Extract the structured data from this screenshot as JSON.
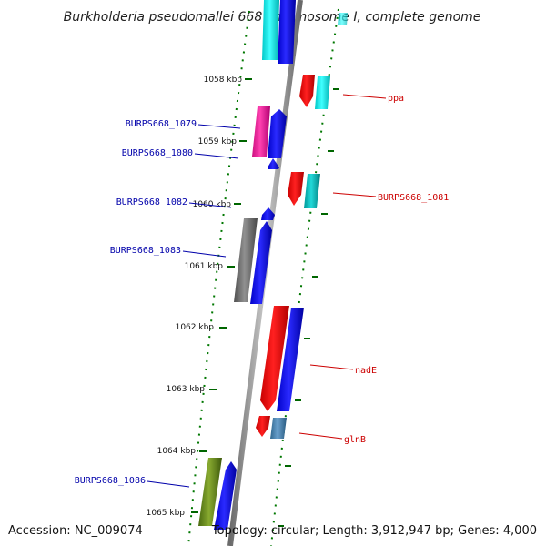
{
  "title": "Burkholderia pseudomallei 668 chromosome I, complete genome",
  "accession": "Accession: NC_009074",
  "topology": "Topology: circular; Length: 3,912,947 bp; Genes: 4,000",
  "ticks": [
    {
      "label": "1058 kbp"
    },
    {
      "label": "1059 kbp"
    },
    {
      "label": "1060 kbp"
    },
    {
      "label": "1061 kbp"
    },
    {
      "label": "1062 kbp"
    },
    {
      "label": "1063 kbp"
    },
    {
      "label": "1064 kbp"
    },
    {
      "label": "1065 kbp"
    }
  ],
  "gene_labels": [
    {
      "name": "BURPS668_1079",
      "color": "#0000aa"
    },
    {
      "name": "BURPS668_1080",
      "color": "#0000aa"
    },
    {
      "name": "BURPS668_1082",
      "color": "#0000aa"
    },
    {
      "name": "BURPS668_1083",
      "color": "#0000aa"
    },
    {
      "name": "BURPS668_1086",
      "color": "#0000aa"
    },
    {
      "name": "ppa",
      "color": "#cc0000"
    },
    {
      "name": "BURPS668_1081",
      "color": "#cc0000"
    },
    {
      "name": "nadE",
      "color": "#cc0000"
    },
    {
      "name": "glnB",
      "color": "#cc0000"
    }
  ],
  "colors": {
    "backbone": "#8a8a8a",
    "ticks": "#007700",
    "forward_cds": "#0000ee",
    "reverse_cds": "#ee0000",
    "rna": "#00dddd"
  }
}
